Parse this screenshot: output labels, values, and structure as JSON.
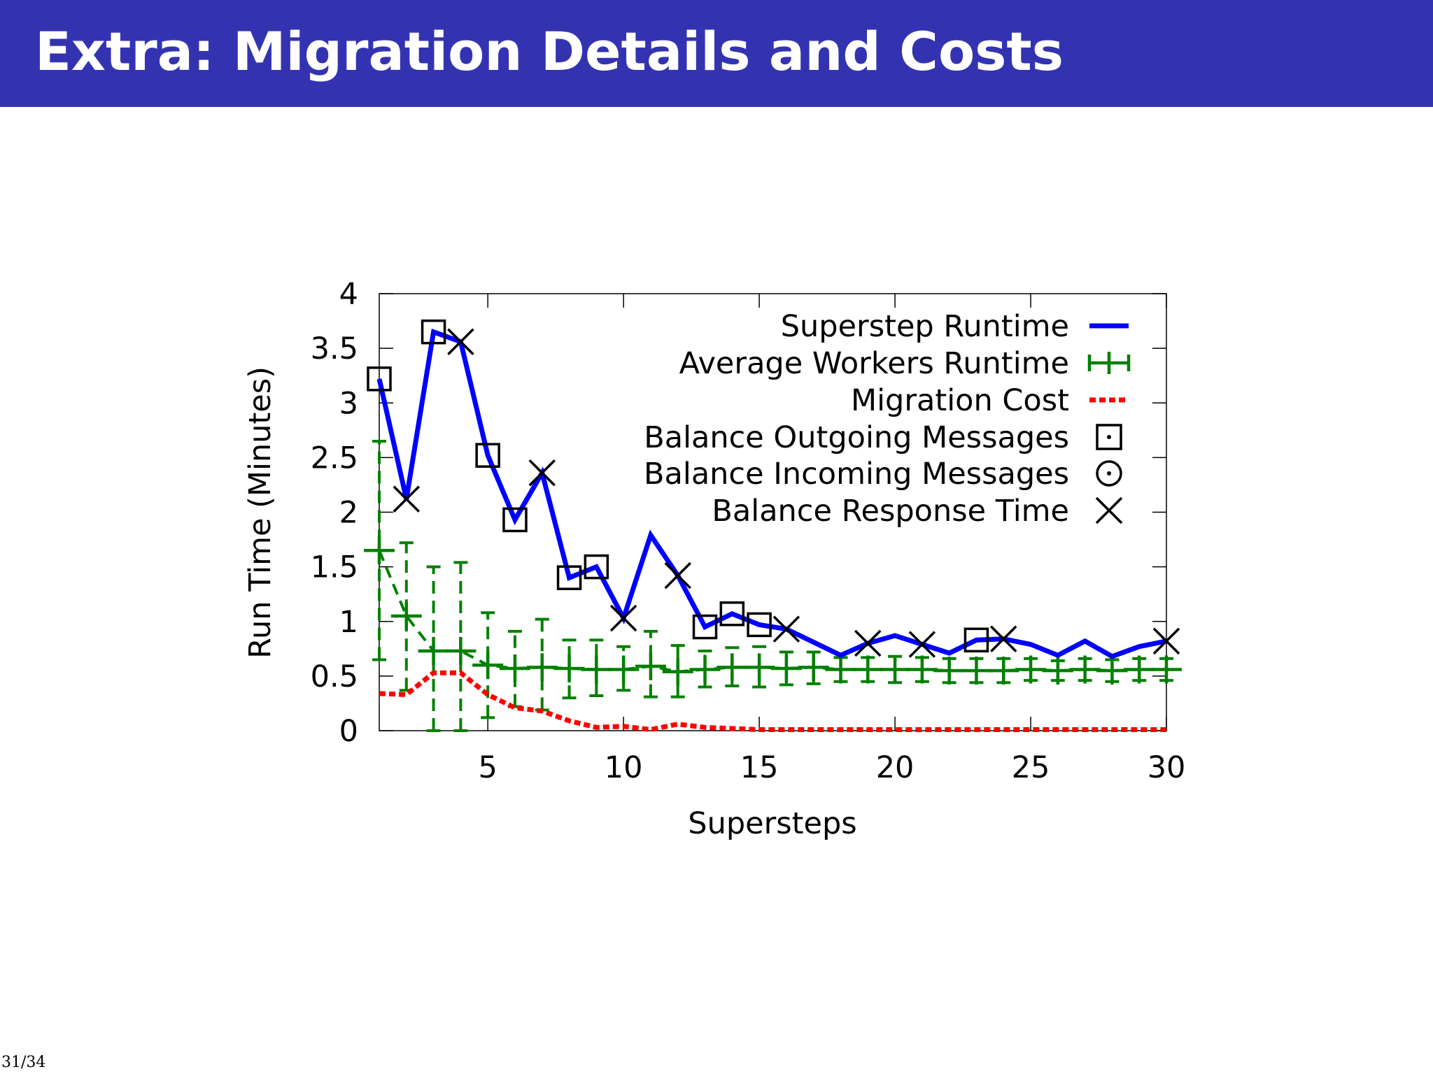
{
  "slide": {
    "title": "Extra: Migration Details and Costs",
    "page_number": "31/34",
    "header_color": "#3333b2"
  },
  "chart_data": {
    "type": "line",
    "xlabel": "Supersteps",
    "ylabel": "Run Time (Minutes)",
    "xlim": [
      1,
      30
    ],
    "ylim": [
      0,
      4
    ],
    "x_ticks": [
      5,
      10,
      15,
      20,
      25,
      30
    ],
    "y_ticks": [
      0,
      0.5,
      1,
      1.5,
      2,
      2.5,
      3,
      3.5,
      4
    ],
    "y_tick_labels": [
      "0",
      "0.5",
      "1",
      "1.5",
      "2",
      "2.5",
      "3",
      "3.5",
      "4"
    ],
    "grid": false,
    "legend_position": "top-right",
    "series": [
      {
        "name": "Superstep Runtime",
        "color": "#0000ff",
        "style": "solid",
        "x": [
          1,
          2,
          3,
          4,
          5,
          6,
          7,
          8,
          9,
          10,
          11,
          12,
          13,
          14,
          15,
          16,
          17,
          18,
          19,
          20,
          21,
          22,
          23,
          24,
          25,
          26,
          27,
          28,
          29,
          30
        ],
        "y": [
          3.22,
          2.12,
          3.65,
          3.56,
          2.52,
          1.93,
          2.36,
          1.4,
          1.5,
          1.03,
          1.79,
          1.42,
          0.95,
          1.07,
          0.97,
          0.93,
          0.81,
          0.69,
          0.8,
          0.87,
          0.79,
          0.71,
          0.83,
          0.84,
          0.79,
          0.69,
          0.82,
          0.68,
          0.77,
          0.82
        ]
      },
      {
        "name": "Average Workers Runtime",
        "color": "#008000",
        "style": "errorbars",
        "x": [
          1,
          2,
          3,
          4,
          5,
          6,
          7,
          8,
          9,
          10,
          11,
          12,
          13,
          14,
          15,
          16,
          17,
          18,
          19,
          20,
          21,
          22,
          23,
          24,
          25,
          26,
          27,
          28,
          29,
          30
        ],
        "y": [
          1.65,
          1.05,
          0.73,
          0.73,
          0.6,
          0.57,
          0.58,
          0.57,
          0.56,
          0.56,
          0.59,
          0.54,
          0.56,
          0.58,
          0.58,
          0.57,
          0.58,
          0.56,
          0.56,
          0.56,
          0.56,
          0.55,
          0.55,
          0.55,
          0.56,
          0.55,
          0.56,
          0.55,
          0.56,
          0.56
        ],
        "y_low": [
          0.65,
          0.37,
          0.0,
          0.0,
          0.12,
          0.22,
          0.19,
          0.3,
          0.32,
          0.37,
          0.31,
          0.31,
          0.4,
          0.41,
          0.4,
          0.42,
          0.43,
          0.45,
          0.45,
          0.44,
          0.45,
          0.44,
          0.44,
          0.44,
          0.46,
          0.46,
          0.46,
          0.45,
          0.46,
          0.46
        ],
        "y_high": [
          2.65,
          1.72,
          1.5,
          1.54,
          1.08,
          0.91,
          1.02,
          0.83,
          0.83,
          0.77,
          0.91,
          0.78,
          0.73,
          0.76,
          0.77,
          0.72,
          0.72,
          0.67,
          0.67,
          0.68,
          0.67,
          0.66,
          0.66,
          0.66,
          0.66,
          0.64,
          0.66,
          0.65,
          0.66,
          0.66
        ]
      },
      {
        "name": "Migration Cost",
        "color": "#ff0000",
        "style": "dashed",
        "x": [
          1,
          2,
          3,
          4,
          5,
          6,
          7,
          8,
          9,
          10,
          11,
          12,
          13,
          14,
          15,
          16,
          17,
          18,
          19,
          20,
          21,
          22,
          23,
          24,
          25,
          26,
          27,
          28,
          29,
          30
        ],
        "y": [
          0.34,
          0.33,
          0.53,
          0.53,
          0.33,
          0.21,
          0.18,
          0.09,
          0.03,
          0.04,
          0.01,
          0.06,
          0.03,
          0.02,
          0.01,
          0.01,
          0.01,
          0.01,
          0.01,
          0.01,
          0.01,
          0.01,
          0.01,
          0.01,
          0.01,
          0.01,
          0.01,
          0.01,
          0.01,
          0.01
        ]
      },
      {
        "name": "Balance Outgoing Messages",
        "color": "#000000",
        "style": "marker-square",
        "x": [
          1,
          3,
          5,
          6,
          8,
          9,
          13,
          14,
          15,
          23
        ],
        "y": [
          3.22,
          3.65,
          2.52,
          1.93,
          1.4,
          1.5,
          0.95,
          1.07,
          0.97,
          0.83
        ]
      },
      {
        "name": "Balance Incoming Messages",
        "color": "#000000",
        "style": "marker-circle",
        "x": [],
        "y": []
      },
      {
        "name": "Balance Response Time",
        "color": "#000000",
        "style": "marker-cross",
        "x": [
          2,
          4,
          7,
          10,
          12,
          16,
          19,
          21,
          24,
          30
        ],
        "y": [
          2.12,
          3.56,
          2.36,
          1.03,
          1.42,
          0.93,
          0.8,
          0.79,
          0.84,
          0.82
        ]
      }
    ]
  }
}
